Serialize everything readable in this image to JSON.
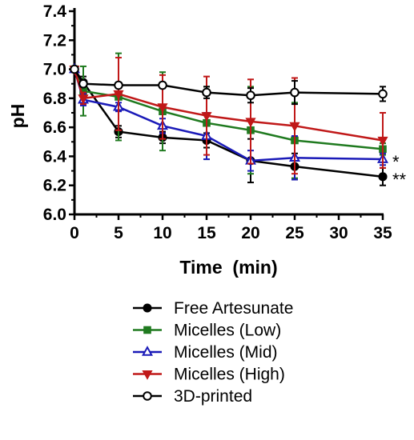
{
  "chart_data": {
    "type": "line",
    "xlabel": "Time  (min)",
    "ylabel": "pH",
    "xlim": [
      0,
      35
    ],
    "ylim": [
      6.0,
      7.4
    ],
    "xticks": [
      0,
      5,
      10,
      15,
      20,
      25,
      30,
      35
    ],
    "yticks": [
      6.0,
      6.2,
      6.4,
      6.6,
      6.8,
      7.0,
      7.2,
      7.4
    ],
    "grid": false,
    "legend_position": "bottom",
    "series": [
      {
        "name": "Free Artesunate",
        "color": "#000000",
        "marker": "circle-filled",
        "x": [
          0,
          1,
          5,
          10,
          15,
          20,
          25,
          35
        ],
        "y": [
          7.0,
          6.91,
          6.57,
          6.53,
          6.51,
          6.37,
          6.33,
          6.26
        ],
        "err": [
          0.01,
          0.04,
          0.04,
          0.04,
          0.05,
          0.15,
          0.09,
          0.06
        ]
      },
      {
        "name": "Micelles (Low)",
        "color": "#1f7a1f",
        "marker": "square",
        "x": [
          0,
          1,
          5,
          10,
          15,
          20,
          25,
          35
        ],
        "y": [
          7.0,
          6.85,
          6.81,
          6.71,
          6.63,
          6.58,
          6.51,
          6.45
        ],
        "err": [
          0.01,
          0.17,
          0.3,
          0.27,
          0.25,
          0.3,
          0.26,
          0.04
        ]
      },
      {
        "name": "Micelles (Mid)",
        "color": "#1a1ab8",
        "marker": "triangle-up",
        "x": [
          0,
          1,
          5,
          10,
          15,
          20,
          25,
          35
        ],
        "y": [
          7.0,
          6.79,
          6.74,
          6.61,
          6.54,
          6.37,
          6.39,
          6.38
        ],
        "err": [
          0.01,
          0.04,
          0.03,
          0.05,
          0.16,
          0.07,
          0.15,
          0.04
        ]
      },
      {
        "name": "Micelles (High)",
        "color": "#c01818",
        "marker": "triangle-down",
        "x": [
          0,
          1,
          5,
          10,
          15,
          20,
          25,
          35
        ],
        "y": [
          7.0,
          6.8,
          6.83,
          6.74,
          6.68,
          6.64,
          6.61,
          6.51
        ],
        "err": [
          0.01,
          0.04,
          0.25,
          0.22,
          0.27,
          0.29,
          0.33,
          0.19
        ]
      },
      {
        "name": "3D-printed",
        "color": "#000000",
        "marker": "circle-open",
        "x": [
          0,
          1,
          5,
          10,
          15,
          20,
          25,
          35
        ],
        "y": [
          7.0,
          6.9,
          6.89,
          6.89,
          6.84,
          6.82,
          6.84,
          6.83
        ],
        "err": [
          0.01,
          0.02,
          0.02,
          0.02,
          0.04,
          0.05,
          0.08,
          0.05
        ]
      }
    ],
    "annotations": [
      {
        "text": "*",
        "near_series": "Micelles (Mid)",
        "at_x": 35
      },
      {
        "text": "**",
        "near_series": "Free Artesunate",
        "at_x": 35
      }
    ]
  }
}
